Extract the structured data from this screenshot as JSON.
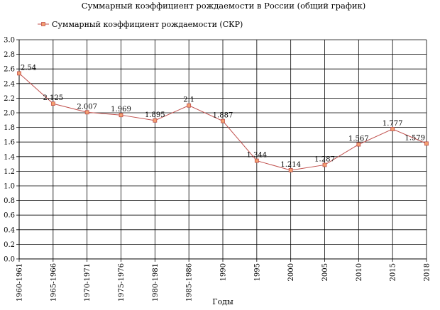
{
  "chart_data": {
    "type": "line",
    "title": "Суммарный коэффициент рождаемости в России (общий график)",
    "xlabel": "Годы",
    "ylabel": "",
    "ylim": [
      0,
      3.0
    ],
    "yticks": [
      "0.0",
      "0.2",
      "0.4",
      "0.6",
      "0.8",
      "1.0",
      "1.2",
      "1.4",
      "1.6",
      "1.8",
      "2.0",
      "2.2",
      "2.4",
      "2.6",
      "2.8",
      "3.0"
    ],
    "grid": true,
    "legend": "top-left",
    "categories": [
      "1960-1961",
      "1965-1966",
      "1970-1971",
      "1975-1976",
      "1980-1981",
      "1985-1986",
      "1990",
      "1995",
      "2000",
      "2005",
      "2010",
      "2015",
      "2018"
    ],
    "series": [
      {
        "name": "Суммарный коэффициент рождаемости (СКР)",
        "color": "#c0504d",
        "marker_fill": "#f4a070",
        "values": [
          2.54,
          2.125,
          2.007,
          1.969,
          1.895,
          2.1,
          1.887,
          1.344,
          1.214,
          1.287,
          1.567,
          1.777,
          1.579
        ],
        "labels": [
          "2.54",
          "2.125",
          "2.007",
          "1.969",
          "1.895",
          "2.1",
          "1.887",
          "1.344",
          "1.214",
          "1.287",
          "1.567",
          "1.777",
          "1.579"
        ]
      }
    ]
  }
}
